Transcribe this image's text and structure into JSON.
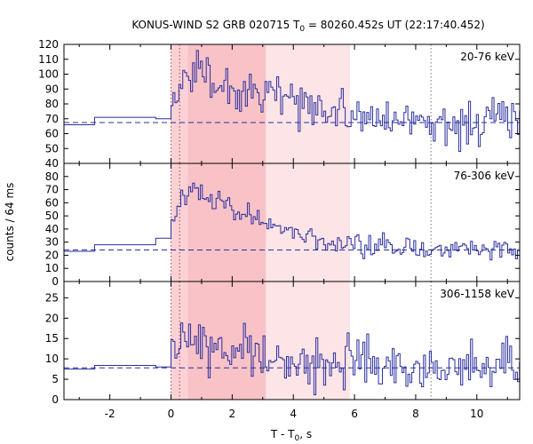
{
  "chart_data": {
    "type": "line",
    "title": {
      "prefix": "KONUS-WIND S2 GRB 020715 T",
      "sub": "0",
      "suffix": " = 80260.452s UT (22:17:40.452)"
    },
    "xlabel": {
      "prefix": "T - T",
      "sub": "0",
      "suffix": ", s"
    },
    "ylabel": "counts / 64 ms",
    "xlim": [
      -3.5,
      11.4
    ],
    "xticks": [
      -2,
      0,
      2,
      4,
      6,
      8,
      10
    ],
    "bin_width": 0.064,
    "shaded_intervals": [
      {
        "start": 0.0,
        "end": 3.1,
        "color": "#fad2d6"
      },
      {
        "start": 3.1,
        "end": 5.85,
        "color": "#fde4e6"
      }
    ],
    "darker_subinterval": {
      "start": 0.55,
      "end": 3.1,
      "color": "#f8c2c7"
    },
    "vertical_markers": [
      {
        "x": 0.0,
        "color": "#c23b3b"
      },
      {
        "x": 0.28,
        "color": "#c23b3b"
      },
      {
        "x": 8.5,
        "color": "#777777"
      }
    ],
    "panels": [
      {
        "label": "20-76 keV",
        "ylim": [
          40,
          120
        ],
        "yticks": [
          40,
          50,
          60,
          70,
          80,
          90,
          100,
          110,
          120
        ],
        "background_level": 67.5,
        "pre_burst": [
          {
            "x0": -3.5,
            "x1": -2.5,
            "y": 66
          },
          {
            "x0": -2.5,
            "x1": -0.5,
            "y": 71
          },
          {
            "x0": -0.5,
            "x1": 0.0,
            "y": 70
          }
        ],
        "envelope": [
          [
            0.0,
            72
          ],
          [
            0.3,
            90
          ],
          [
            0.5,
            103
          ],
          [
            1.0,
            98
          ],
          [
            1.5,
            92
          ],
          [
            2.2,
            90
          ],
          [
            3.0,
            86
          ],
          [
            4.0,
            80
          ],
          [
            5.0,
            76
          ],
          [
            6.0,
            72
          ],
          [
            7.0,
            70
          ],
          [
            8.0,
            69
          ],
          [
            11.4,
            68
          ]
        ],
        "noise": 7.5
      },
      {
        "label": "76-306 keV",
        "ylim": [
          0,
          90
        ],
        "yticks": [
          0,
          10,
          20,
          30,
          40,
          50,
          60,
          70,
          80
        ],
        "background_level": 24,
        "pre_burst": [
          {
            "x0": -3.5,
            "x1": -2.5,
            "y": 23
          },
          {
            "x0": -2.5,
            "x1": -0.5,
            "y": 28
          },
          {
            "x0": -0.5,
            "x1": 0.0,
            "y": 33
          }
        ],
        "envelope": [
          [
            0.0,
            40
          ],
          [
            0.2,
            55
          ],
          [
            0.5,
            66
          ],
          [
            0.8,
            72
          ],
          [
            1.2,
            64
          ],
          [
            2.0,
            56
          ],
          [
            3.0,
            46
          ],
          [
            4.0,
            35
          ],
          [
            5.0,
            30
          ],
          [
            6.0,
            27
          ],
          [
            8.0,
            25
          ],
          [
            11.4,
            24
          ]
        ],
        "noise": 4.2
      },
      {
        "label": "306-1158 keV",
        "ylim": [
          0,
          29
        ],
        "yticks": [
          0,
          5,
          10,
          15,
          20,
          25
        ],
        "background_level": 7.8,
        "pre_burst": [
          {
            "x0": -3.5,
            "x1": -2.5,
            "y": 7.5
          },
          {
            "x0": -2.5,
            "x1": -0.5,
            "y": 8.4
          },
          {
            "x0": -0.5,
            "x1": 0.0,
            "y": 8.0
          }
        ],
        "envelope": [
          [
            0.0,
            11
          ],
          [
            0.5,
            14.5
          ],
          [
            1.2,
            13.5
          ],
          [
            2.0,
            13
          ],
          [
            3.0,
            11.5
          ],
          [
            4.0,
            10
          ],
          [
            5.0,
            9.2
          ],
          [
            6.0,
            8.7
          ],
          [
            8.0,
            8.2
          ],
          [
            11.4,
            8
          ]
        ],
        "noise": 3.2
      }
    ],
    "grid": false,
    "line_color": "#2b2f9e",
    "background_line_color": "#2b2f9e"
  }
}
